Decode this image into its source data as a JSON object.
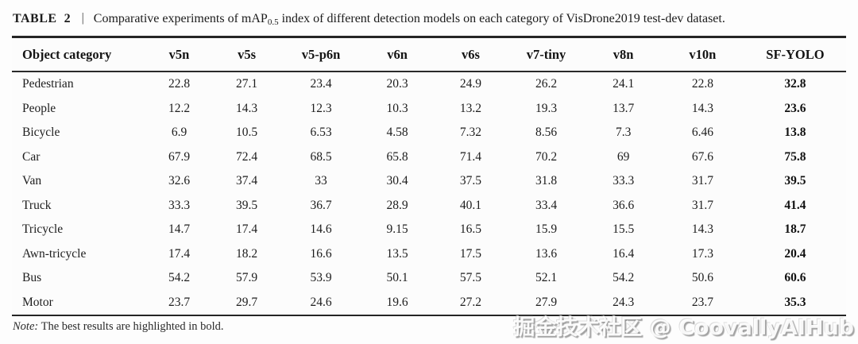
{
  "caption": {
    "label": "TABLE",
    "number": "2",
    "separator": "|",
    "desc_pre": "Comparative experiments of mAP",
    "desc_sub": "0.5",
    "desc_post": " index of different detection models on each category of VisDrone2019 test-dev dataset."
  },
  "table": {
    "columns": [
      "Object category",
      "v5n",
      "v5s",
      "v5-p6n",
      "v6n",
      "v6s",
      "v7-tiny",
      "v8n",
      "v10n",
      "SF-YOLO"
    ],
    "rows": [
      {
        "category": "Pedestrian",
        "values": [
          "22.8",
          "27.1",
          "23.4",
          "20.3",
          "24.9",
          "26.2",
          "24.1",
          "22.8",
          "32.8"
        ]
      },
      {
        "category": "People",
        "values": [
          "12.2",
          "14.3",
          "12.3",
          "10.3",
          "13.2",
          "19.3",
          "13.7",
          "14.3",
          "23.6"
        ]
      },
      {
        "category": "Bicycle",
        "values": [
          "6.9",
          "10.5",
          "6.53",
          "4.58",
          "7.32",
          "8.56",
          "7.3",
          "6.46",
          "13.8"
        ]
      },
      {
        "category": "Car",
        "values": [
          "67.9",
          "72.4",
          "68.5",
          "65.8",
          "71.4",
          "70.2",
          "69",
          "67.6",
          "75.8"
        ]
      },
      {
        "category": "Van",
        "values": [
          "32.6",
          "37.4",
          "33",
          "30.4",
          "37.5",
          "31.8",
          "33.3",
          "31.7",
          "39.5"
        ]
      },
      {
        "category": "Truck",
        "values": [
          "33.3",
          "39.5",
          "36.7",
          "28.9",
          "40.1",
          "33.4",
          "36.6",
          "31.7",
          "41.4"
        ]
      },
      {
        "category": "Tricycle",
        "values": [
          "14.7",
          "17.4",
          "14.6",
          "9.15",
          "16.5",
          "15.9",
          "15.5",
          "14.3",
          "18.7"
        ]
      },
      {
        "category": "Awn-tricycle",
        "values": [
          "17.4",
          "18.2",
          "16.6",
          "13.5",
          "17.5",
          "13.6",
          "16.4",
          "17.3",
          "20.4"
        ]
      },
      {
        "category": "Bus",
        "values": [
          "54.2",
          "57.9",
          "53.9",
          "50.1",
          "57.5",
          "52.1",
          "54.2",
          "50.6",
          "60.6"
        ]
      },
      {
        "category": "Motor",
        "values": [
          "23.7",
          "29.7",
          "24.6",
          "19.6",
          "27.2",
          "27.9",
          "24.3",
          "23.7",
          "35.3"
        ]
      }
    ],
    "best_column": "SF-YOLO"
  },
  "footnote": {
    "label": "Note:",
    "text": " The best results are highlighted in bold."
  },
  "watermark": {
    "text": "掘金技术社区 @ CoovallyAIHub"
  },
  "colors": {
    "text": "#1c1c1c",
    "rule": "#252525",
    "background": "#fdfdfd",
    "watermark": "#ffffff"
  }
}
